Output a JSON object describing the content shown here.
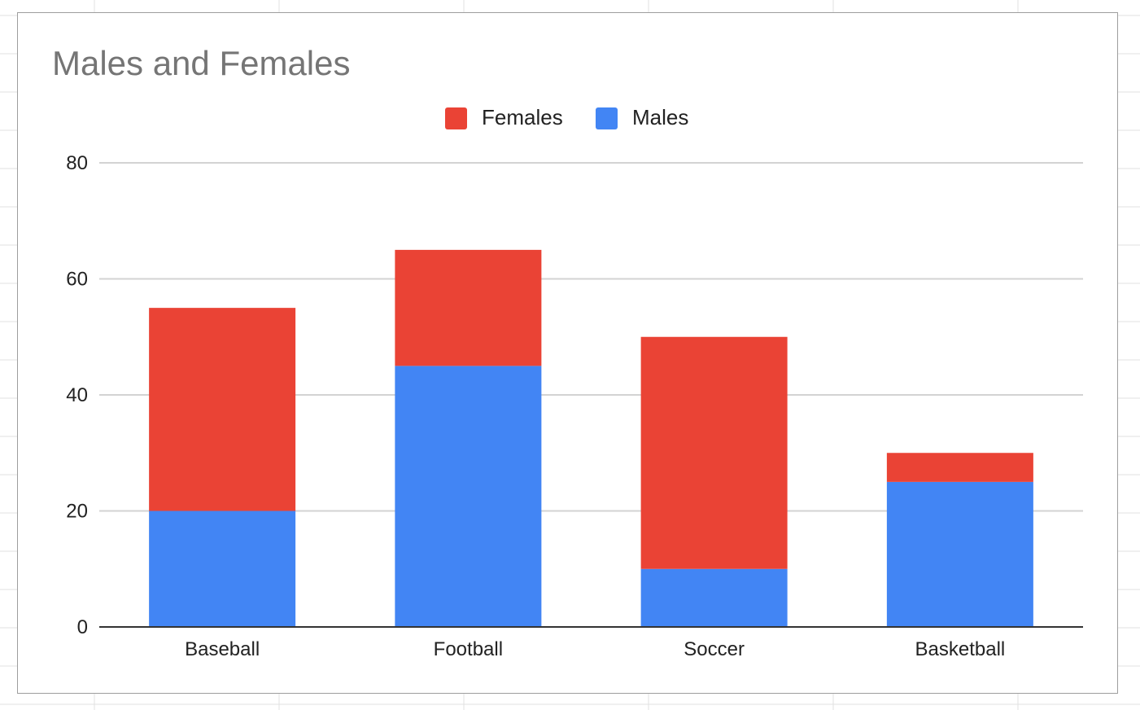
{
  "chart_data": {
    "type": "bar",
    "stacked": true,
    "title": "Males and Females",
    "xlabel": "",
    "ylabel": "",
    "categories": [
      "Baseball",
      "Football",
      "Soccer",
      "Basketball"
    ],
    "series": [
      {
        "name": "Males",
        "color": "#4285f4",
        "values": [
          20,
          45,
          10,
          25
        ]
      },
      {
        "name": "Females",
        "color": "#ea4335",
        "values": [
          35,
          20,
          40,
          5
        ]
      }
    ],
    "legend_order": [
      "Females",
      "Males"
    ],
    "legend_position": "top",
    "ylim": [
      0,
      80
    ],
    "yticks": [
      0,
      20,
      40,
      60,
      80
    ],
    "grid": true
  }
}
